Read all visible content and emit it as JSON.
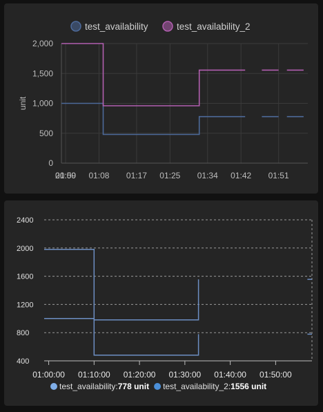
{
  "chart_data": [
    {
      "type": "line",
      "step": true,
      "title": "",
      "ylabel": "unit",
      "ylim": [
        0,
        2000
      ],
      "yticks": [
        "0",
        "500",
        "1,000",
        "1,500",
        "2,000"
      ],
      "xticks": [
        "01:00",
        "01:08",
        "01:17",
        "01:25",
        "01:34",
        "01:42",
        "01:51"
      ],
      "xtick_overlap_label": "20:59",
      "xlim": [
        "00:59",
        "01:58"
      ],
      "legend_position": "top",
      "grid": true,
      "series": [
        {
          "name": "test_availability",
          "color": "#4d6a9a",
          "segments": [
            [
              [
                "00:59",
                1000
              ],
              [
                "01:09",
                1000
              ],
              [
                "01:09",
                480
              ],
              [
                "01:32",
                480
              ],
              [
                "01:32",
                778
              ],
              [
                "01:43",
                778
              ]
            ],
            [
              [
                "01:47",
                778
              ],
              [
                "01:51",
                778
              ]
            ],
            [
              [
                "01:53",
                778
              ],
              [
                "01:57",
                778
              ]
            ]
          ]
        },
        {
          "name": "test_availability_2",
          "color": "#b25fb0",
          "segments": [
            [
              [
                "00:59",
                2000
              ],
              [
                "01:09",
                2000
              ],
              [
                "01:09",
                960
              ],
              [
                "01:32",
                960
              ],
              [
                "01:32",
                1556
              ],
              [
                "01:43",
                1556
              ]
            ],
            [
              [
                "01:47",
                1556
              ],
              [
                "01:51",
                1556
              ]
            ],
            [
              [
                "01:53",
                1556
              ],
              [
                "01:57",
                1556
              ]
            ]
          ]
        }
      ]
    },
    {
      "type": "line",
      "step": true,
      "title": "",
      "ylim": [
        400,
        2400
      ],
      "yticks": [
        "400",
        "800",
        "1200",
        "1600",
        "2000",
        "2400"
      ],
      "xticks": [
        "01:00:00",
        "01:10:00",
        "01:20:00",
        "01:30:00",
        "01:40:00",
        "01:50:00"
      ],
      "xlim": [
        "00:59",
        "01:58"
      ],
      "legend_position": "bottom",
      "grid": true,
      "series": [
        {
          "name": "test_availability",
          "legend_value": "778 unit",
          "color": "#7faee8",
          "line_color": "#6d8fc4",
          "segments": [
            [
              [
                "00:59",
                1000
              ],
              [
                "01:10",
                1000
              ],
              [
                "01:10",
                480
              ],
              [
                "01:33",
                480
              ],
              [
                "01:33",
                778
              ]
            ],
            [
              [
                "01:57",
                778
              ],
              [
                "01:58",
                778
              ]
            ]
          ]
        },
        {
          "name": "test_availability_2",
          "legend_value": "1556 unit",
          "color": "#4b8fd8",
          "line_color": "#6d8fc4",
          "segments": [
            [
              [
                "00:59",
                1980
              ],
              [
                "01:10",
                1980
              ],
              [
                "01:10",
                980
              ],
              [
                "01:33",
                980
              ],
              [
                "01:33",
                1556
              ]
            ],
            [
              [
                "01:57",
                1556
              ],
              [
                "01:58",
                1556
              ]
            ]
          ]
        }
      ]
    }
  ]
}
